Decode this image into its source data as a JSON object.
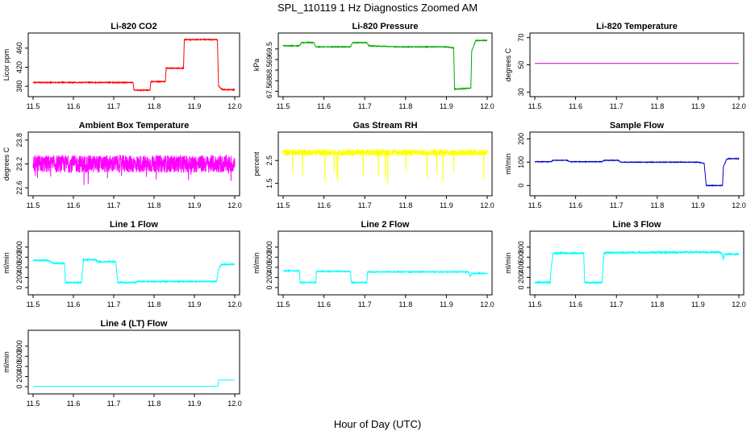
{
  "figure": {
    "title": "SPL_110119  1 Hz Diagnostics Zoomed AM",
    "xlabel": "Hour of Day (UTC)"
  },
  "chart_data": [
    {
      "type": "line",
      "title": "Li-820 CO2",
      "ylabel": "Licor ppm",
      "color": "#ff0000",
      "xlim": [
        11.5,
        12.0
      ],
      "ylim": [
        365,
        485
      ],
      "yticks": [
        380,
        420,
        460
      ],
      "xticks": [
        11.5,
        11.6,
        11.7,
        11.8,
        11.9,
        12.0
      ],
      "noise": 0.8,
      "series": [
        {
          "x": [
            11.5,
            11.748,
            11.75,
            11.79,
            11.792,
            11.828,
            11.83,
            11.873,
            11.875,
            11.957,
            11.96,
            11.968,
            11.97,
            12.0
          ],
          "y": [
            388,
            388,
            372,
            372,
            390,
            390,
            418,
            418,
            478,
            478,
            380,
            374,
            373,
            373
          ]
        }
      ]
    },
    {
      "type": "line",
      "title": "Li-820 Pressure",
      "ylabel": "kPa",
      "color": "#00aa00",
      "xlim": [
        11.5,
        12.0
      ],
      "ylim": [
        67.4,
        70.1
      ],
      "yticks": [
        67.5,
        68,
        68.5,
        69,
        69.5
      ],
      "xticks": [
        11.5,
        11.6,
        11.7,
        11.8,
        11.9,
        12.0
      ],
      "noise": 0.015,
      "series": [
        {
          "x": [
            11.5,
            11.54,
            11.545,
            11.575,
            11.58,
            11.665,
            11.67,
            11.705,
            11.71,
            11.78,
            11.9,
            11.918,
            11.92,
            11.96,
            11.962,
            11.97,
            11.972,
            12.0
          ],
          "y": [
            69.65,
            69.65,
            69.8,
            69.8,
            69.6,
            69.6,
            69.8,
            69.8,
            69.65,
            69.6,
            69.6,
            69.55,
            67.6,
            67.65,
            69.4,
            69.8,
            69.9,
            69.9
          ]
        }
      ]
    },
    {
      "type": "line",
      "title": "Li-820 Temperature",
      "ylabel": "degrees C",
      "color": "#cc00cc",
      "xlim": [
        11.5,
        12.0
      ],
      "ylim": [
        29,
        71
      ],
      "yticks": [
        30,
        50,
        70
      ],
      "xticks": [
        11.5,
        11.6,
        11.7,
        11.8,
        11.9,
        12.0
      ],
      "noise": 0,
      "series": [
        {
          "x": [
            11.5,
            12.0
          ],
          "y": [
            51,
            51
          ]
        }
      ]
    },
    {
      "type": "line",
      "title": "Ambient Box Temperature",
      "ylabel": "degrees C",
      "color": "#ff00ff",
      "xlim": [
        11.5,
        12.0
      ],
      "ylim": [
        22.48,
        23.92
      ],
      "yticks": [
        22.6,
        23.2,
        23.8
      ],
      "xticks": [
        11.5,
        11.6,
        11.7,
        11.8,
        11.9,
        12.0
      ],
      "noise": 0.22,
      "series": [
        {
          "x": [
            11.5,
            12.0
          ],
          "y": [
            23.2,
            23.2
          ]
        }
      ]
    },
    {
      "type": "line",
      "title": "Gas Stream RH",
      "ylabel": "percent",
      "color": "#ffff00",
      "xlim": [
        11.5,
        12.0
      ],
      "ylim": [
        1.1,
        3.6
      ],
      "yticks": [
        1.5,
        2.5
      ],
      "xticks": [
        11.5,
        11.6,
        11.7,
        11.8,
        11.9,
        12.0
      ],
      "noise": 0.14,
      "series": [
        {
          "x": [
            11.5,
            12.0
          ],
          "y": [
            2.85,
            2.85
          ]
        }
      ]
    },
    {
      "type": "line",
      "title": "Sample Flow",
      "ylabel": "ml/min",
      "color": "#0000cc",
      "xlim": [
        11.5,
        12.0
      ],
      "ylim": [
        -30,
        215
      ],
      "yticks": [
        0,
        100,
        200
      ],
      "xticks": [
        11.5,
        11.6,
        11.7,
        11.8,
        11.9,
        12.0
      ],
      "noise": 1.2,
      "series": [
        {
          "x": [
            11.5,
            11.54,
            11.545,
            11.58,
            11.585,
            11.665,
            11.67,
            11.705,
            11.71,
            11.9,
            11.915,
            11.92,
            11.96,
            11.962,
            11.97,
            11.975,
            12.0
          ],
          "y": [
            102,
            102,
            108,
            108,
            102,
            102,
            108,
            108,
            100,
            100,
            95,
            0,
            0,
            80,
            112,
            115,
            115
          ]
        }
      ]
    },
    {
      "type": "line",
      "title": "Line 1 Flow",
      "ylabel": "ml/min",
      "color": "#00ffff",
      "xlim": [
        11.5,
        12.0
      ],
      "ylim": [
        -80,
        1050
      ],
      "yticks": [
        0,
        200,
        400,
        600,
        800
      ],
      "xticks": [
        11.5,
        11.6,
        11.7,
        11.8,
        11.9,
        12.0
      ],
      "noise": 10,
      "series": [
        {
          "x": [
            11.5,
            11.535,
            11.55,
            11.578,
            11.58,
            11.62,
            11.625,
            11.655,
            11.66,
            11.705,
            11.71,
            11.755,
            11.76,
            11.955,
            11.96,
            11.965,
            11.97,
            12.0
          ],
          "y": [
            540,
            540,
            480,
            480,
            100,
            100,
            550,
            550,
            510,
            510,
            100,
            100,
            120,
            120,
            350,
            440,
            460,
            460
          ]
        }
      ]
    },
    {
      "type": "line",
      "title": "Line 2 Flow",
      "ylabel": "ml/min",
      "color": "#00ffff",
      "xlim": [
        11.5,
        12.0
      ],
      "ylim": [
        -80,
        1050
      ],
      "yticks": [
        0,
        200,
        400,
        600,
        800
      ],
      "xticks": [
        11.5,
        11.6,
        11.7,
        11.8,
        11.9,
        12.0
      ],
      "noise": 8,
      "series": [
        {
          "x": [
            11.5,
            11.54,
            11.542,
            11.58,
            11.582,
            11.665,
            11.667,
            11.705,
            11.707,
            11.955,
            11.957,
            11.96,
            11.962,
            12.0
          ],
          "y": [
            330,
            330,
            100,
            100,
            320,
            320,
            100,
            100,
            310,
            310,
            230,
            230,
            280,
            280
          ]
        }
      ]
    },
    {
      "type": "line",
      "title": "Line 3 Flow",
      "ylabel": "ml/min",
      "color": "#00ffff",
      "xlim": [
        11.5,
        12.0
      ],
      "ylim": [
        -80,
        1050
      ],
      "yticks": [
        0,
        200,
        400,
        600,
        800
      ],
      "xticks": [
        11.5,
        11.6,
        11.7,
        11.8,
        11.9,
        12.0
      ],
      "noise": 18,
      "series": [
        {
          "x": [
            11.5,
            11.538,
            11.54,
            11.545,
            11.62,
            11.622,
            11.665,
            11.667,
            11.67,
            11.955,
            11.96,
            11.962,
            11.965,
            12.0
          ],
          "y": [
            100,
            100,
            400,
            680,
            680,
            100,
            100,
            400,
            690,
            700,
            650,
            550,
            660,
            660
          ]
        }
      ]
    },
    {
      "type": "line",
      "title": "Line 4 (LT) Flow",
      "ylabel": "ml/min",
      "color": "#00ffff",
      "xlim": [
        11.5,
        12.0
      ],
      "ylim": [
        -80,
        1050
      ],
      "yticks": [
        0,
        200,
        400,
        600,
        800
      ],
      "xticks": [
        11.5,
        11.6,
        11.7,
        11.8,
        11.9,
        12.0
      ],
      "noise": 0,
      "series": [
        {
          "x": [
            11.5,
            11.958,
            11.96,
            12.0
          ],
          "y": [
            5,
            5,
            130,
            130
          ]
        }
      ]
    }
  ]
}
